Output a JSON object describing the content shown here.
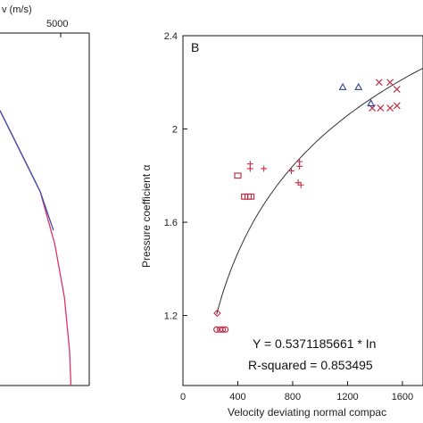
{
  "chart_data": [
    {
      "type": "line",
      "panel": "A (partial)",
      "xlabel": "v (m/s)",
      "xticks": [
        "5000"
      ],
      "series": [
        {
          "color": "#e0306a",
          "points": [
            [
              0.0,
              0.22
            ],
            [
              0.55,
              0.45
            ],
            [
              0.75,
              0.6
            ],
            [
              0.88,
              0.75
            ],
            [
              0.95,
              0.9
            ],
            [
              0.97,
              1.0
            ]
          ]
        },
        {
          "color": "#3a4fa8",
          "points": [
            [
              0.0,
              0.22
            ],
            [
              0.55,
              0.45
            ],
            [
              0.73,
              0.56
            ]
          ]
        }
      ]
    },
    {
      "type": "scatter",
      "panel": "B",
      "panel_label": "B",
      "xlabel": "Velocity deviating normal compac",
      "ylabel": "Pressure coefficient α",
      "xlim": [
        0,
        1750
      ],
      "ylim": [
        0.9,
        2.4
      ],
      "xticks": [
        "0",
        "400",
        "800",
        "1200",
        "1600"
      ],
      "yticks": [
        "1.2",
        "1.6",
        "2",
        "2.4"
      ],
      "xtick_values": [
        0,
        400,
        800,
        1200,
        1600
      ],
      "ytick_values": [
        1.2,
        1.6,
        2.0,
        2.4
      ],
      "grid": false,
      "fit_equation": "Y = 0.5371185661 * In",
      "r_squared": "R-squared = 0.853495",
      "fit_curve": {
        "a": 0.5371185661,
        "b": -1.75,
        "x_from": 245,
        "x_to": 1750
      },
      "series": [
        {
          "marker": "x",
          "color": "#c0304a",
          "points": [
            [
              1430,
              2.2
            ],
            [
              1510,
              2.2
            ],
            [
              1560,
              2.17
            ],
            [
              1380,
              2.09
            ],
            [
              1440,
              2.09
            ],
            [
              1510,
              2.09
            ],
            [
              1560,
              2.1
            ]
          ]
        },
        {
          "marker": "+",
          "color": "#c0304a",
          "points": [
            [
              490,
              1.85
            ],
            [
              490,
              1.83
            ],
            [
              590,
              1.83
            ],
            [
              790,
              1.82
            ],
            [
              850,
              1.86
            ],
            [
              850,
              1.84
            ],
            [
              840,
              1.77
            ],
            [
              860,
              1.76
            ]
          ]
        },
        {
          "marker": "triangle",
          "color": "#2a3f9f",
          "points": [
            [
              1165,
              2.18
            ],
            [
              1280,
              2.18
            ],
            [
              1370,
              2.11
            ]
          ]
        },
        {
          "marker": "square",
          "color": "#c0304a",
          "points": [
            [
              400,
              1.8
            ],
            [
              450,
              1.71
            ],
            [
              475,
              1.71
            ],
            [
              495,
              1.71
            ]
          ]
        },
        {
          "marker": "circle",
          "color": "#c0304a",
          "points": [
            [
              245,
              1.14
            ],
            [
              270,
              1.14
            ],
            [
              290,
              1.14
            ],
            [
              310,
              1.14
            ]
          ]
        },
        {
          "marker": "diamond",
          "color": "#c0304a",
          "points": [
            [
              250,
              1.21
            ]
          ]
        }
      ]
    }
  ]
}
